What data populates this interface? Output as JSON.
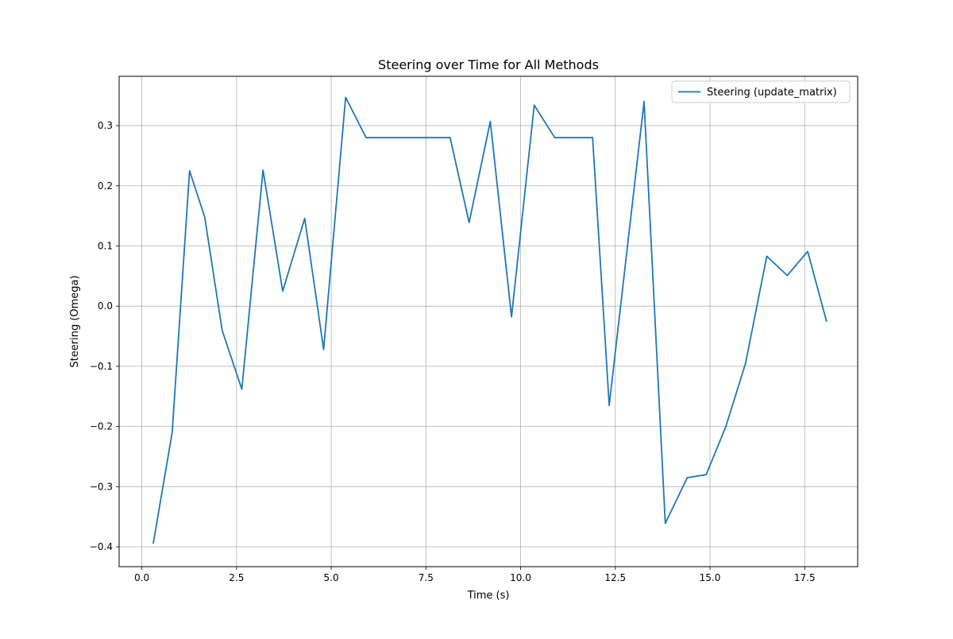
{
  "chart_data": {
    "type": "line",
    "title": "Steering over Time for All Methods",
    "xlabel": "Time (s)",
    "ylabel": "Steering (Omega)",
    "xlim": [
      -0.6,
      18.9
    ],
    "ylim": [
      -0.433,
      0.382
    ],
    "x_ticks": [
      0.0,
      2.5,
      5.0,
      7.5,
      10.0,
      12.5,
      15.0,
      17.5
    ],
    "x_tick_labels": [
      "0.0",
      "2.5",
      "5.0",
      "7.5",
      "10.0",
      "12.5",
      "15.0",
      "17.5"
    ],
    "y_ticks": [
      -0.4,
      -0.3,
      -0.2,
      -0.1,
      0.0,
      0.1,
      0.2,
      0.3
    ],
    "y_tick_labels": [
      "−0.4",
      "−0.3",
      "−0.2",
      "−0.1",
      "0.0",
      "0.1",
      "0.2",
      "0.3"
    ],
    "grid": true,
    "legend_position": "top-right",
    "series": [
      {
        "name": "Steering (update_matrix)",
        "color": "#1f77b4",
        "x": [
          0.3,
          0.8,
          1.26,
          1.66,
          2.12,
          2.64,
          3.2,
          3.72,
          4.3,
          4.8,
          5.38,
          5.92,
          6.5,
          7.0,
          7.6,
          8.14,
          8.64,
          9.2,
          9.76,
          10.36,
          10.9,
          11.4,
          11.9,
          12.34,
          13.26,
          13.82,
          14.4,
          14.9,
          15.42,
          15.94,
          16.5,
          17.04,
          17.58,
          18.08
        ],
        "y": [
          -0.395,
          -0.21,
          0.225,
          0.148,
          -0.04,
          -0.138,
          0.226,
          0.025,
          0.146,
          -0.072,
          0.347,
          0.28,
          0.28,
          0.28,
          0.28,
          0.28,
          0.139,
          0.307,
          -0.018,
          0.334,
          0.28,
          0.28,
          0.28,
          -0.165,
          0.34,
          -0.361,
          -0.285,
          -0.28,
          -0.2,
          -0.095,
          0.083,
          0.051,
          0.091,
          -0.026
        ]
      }
    ]
  }
}
